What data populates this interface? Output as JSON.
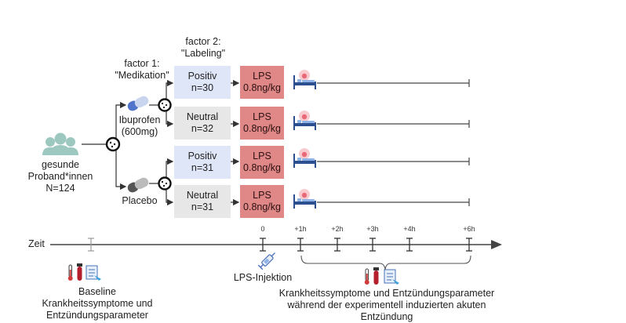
{
  "participants": {
    "line1": "gesunde",
    "line2": "Proband*innen",
    "line3": "N=124"
  },
  "factor1": {
    "line1": "factor 1:",
    "line2": "\"Medikation\""
  },
  "factor2": {
    "line1": "factor 2:",
    "line2": "\"Labeling\""
  },
  "drug_ibuprofen": {
    "line1": "Ibuprofen",
    "line2": "(600mg)"
  },
  "drug_placebo": {
    "label": "Placebo"
  },
  "groups": [
    {
      "label": "Positiv",
      "n": "n=30"
    },
    {
      "label": "Neutral",
      "n": "n=32"
    },
    {
      "label": "Positiv",
      "n": "n=31"
    },
    {
      "label": "Neutral",
      "n": "n=31"
    }
  ],
  "lps": {
    "line1": "LPS",
    "line2": "0.8ng/kg"
  },
  "timeline": {
    "axis_label": "Zeit",
    "ticks": [
      "0",
      "+1h",
      "+2h",
      "+3h",
      "+4h",
      "+6h"
    ],
    "injection_label": "LPS-Injektion",
    "baseline": {
      "line1": "Baseline",
      "line2": "Krankheitssymptome und",
      "line3": "Entzündungsparameter"
    },
    "post": {
      "line1": "Krankheitssymptome und Entzündungsparameter",
      "line2": "während der experimentell induzierten akuten",
      "line3": "Entzündung"
    }
  },
  "icon_names": [
    "people-icon",
    "random-assign-icon",
    "pill-icon",
    "patient-bed-icon",
    "syringe-icon",
    "thermometer-icon",
    "blood-tube-icon",
    "clipboard-icon"
  ],
  "colors": {
    "lps_red": "#e08787",
    "positive_blue": "#dfe6f8",
    "neutral_gray": "#e7e7e7",
    "people_teal": "#9cc8c0"
  }
}
